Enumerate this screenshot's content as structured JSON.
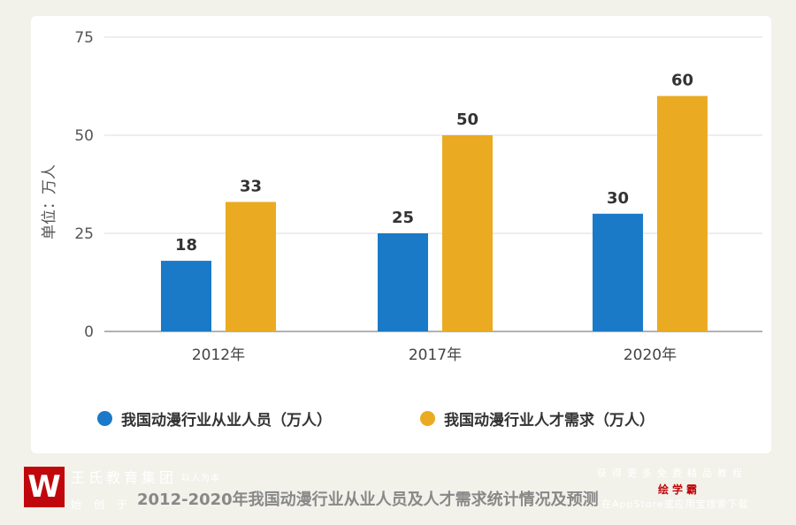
{
  "chart_data": {
    "type": "bar",
    "title": "2012-2020年我国动漫行业从业人员及人才需求统计情况及预测",
    "ylabel": "单位：万人",
    "ylim": [
      0,
      75
    ],
    "yticks": [
      0,
      25,
      50,
      75
    ],
    "categories": [
      "2012年",
      "2017年",
      "2020年"
    ],
    "series": [
      {
        "name": "我国动漫行业从业人员（万人）",
        "color": "#1a7ac8",
        "values": [
          18,
          25,
          30
        ]
      },
      {
        "name": "我国动漫行业人才需求（万人）",
        "color": "#eaab22",
        "values": [
          33,
          50,
          60
        ]
      }
    ],
    "grid": true,
    "legend": "bottom"
  },
  "footer": {
    "brand": "王氏教育集团",
    "slogan": "以人为本",
    "since": "始创于",
    "promo": "获得更多免费精品教程",
    "app": "绘学霸",
    "download": "在AppStore或应用宝搜索下载",
    "logo": "W"
  }
}
